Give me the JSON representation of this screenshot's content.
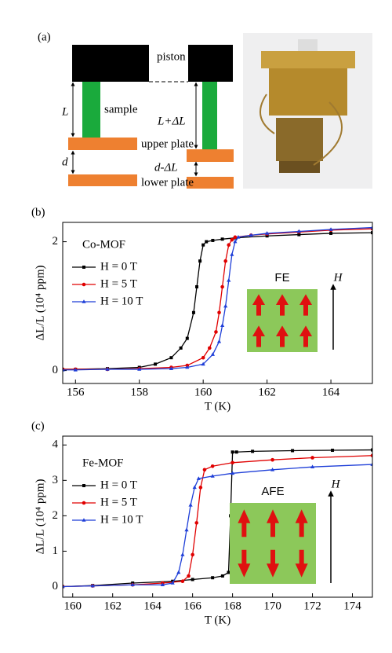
{
  "diagram": {
    "label": "(a)",
    "piston": "piston",
    "sample": "sample",
    "L": "L",
    "L_plus": "L+ΔL",
    "upper_plate": "upper plate",
    "d": "d",
    "d_minus": "d-ΔL",
    "lower_plate": "lower plate"
  },
  "chart_data": [
    {
      "type": "line",
      "panel": "(b)",
      "x_label": "T (K)",
      "y_label": "ΔL/L (10⁴ ppm)",
      "legend_title": "Co-MOF",
      "inset_label": "FE",
      "field_label": "H",
      "xlim": [
        155.6,
        165.3
      ],
      "xticks": [
        156,
        158,
        160,
        162,
        164
      ],
      "ylim": [
        -0.2,
        2.3
      ],
      "yticks": [
        0,
        2
      ],
      "series": [
        {
          "name": "H = 0 T",
          "color": "#000000",
          "marker": "square",
          "x": [
            155.6,
            156,
            157,
            158,
            158.5,
            159,
            159.3,
            159.5,
            159.7,
            159.8,
            159.9,
            160,
            160.1,
            160.3,
            160.6,
            161,
            162,
            163,
            164,
            165.3
          ],
          "values": [
            0.02,
            0.02,
            0.03,
            0.05,
            0.1,
            0.2,
            0.35,
            0.5,
            0.9,
            1.3,
            1.7,
            1.95,
            2.0,
            2.02,
            2.04,
            2.06,
            2.09,
            2.11,
            2.13,
            2.14
          ]
        },
        {
          "name": "H = 5 T",
          "color": "#e00000",
          "marker": "circle",
          "x": [
            155.6,
            156,
            157,
            158,
            159,
            159.5,
            160,
            160.2,
            160.4,
            160.5,
            160.6,
            160.7,
            160.8,
            160.9,
            161,
            161.5,
            162,
            163,
            164,
            165.3
          ],
          "values": [
            0.02,
            0.02,
            0.02,
            0.03,
            0.05,
            0.08,
            0.2,
            0.35,
            0.6,
            0.9,
            1.3,
            1.7,
            1.95,
            2.03,
            2.07,
            2.1,
            2.12,
            2.15,
            2.18,
            2.2
          ]
        },
        {
          "name": "H = 10 T",
          "color": "#1f3fd8",
          "marker": "triangle",
          "x": [
            155.6,
            156,
            157,
            158,
            159,
            159.5,
            160,
            160.3,
            160.5,
            160.6,
            160.7,
            160.8,
            160.9,
            161,
            161.1,
            161.5,
            162,
            163,
            164,
            165.3
          ],
          "values": [
            0.01,
            0.01,
            0.02,
            0.02,
            0.03,
            0.05,
            0.1,
            0.25,
            0.45,
            0.7,
            1.0,
            1.4,
            1.8,
            2.0,
            2.07,
            2.1,
            2.13,
            2.16,
            2.19,
            2.22
          ]
        }
      ]
    },
    {
      "type": "line",
      "panel": "(c)",
      "x_label": "T (K)",
      "y_label": "ΔL/L (10⁴ ppm)",
      "legend_title": "Fe-MOF",
      "inset_label": "AFE",
      "field_label": "H",
      "xlim": [
        159.5,
        175.0
      ],
      "xticks": [
        160,
        162,
        164,
        166,
        168,
        170,
        172,
        174
      ],
      "ylim": [
        -0.3,
        4.25
      ],
      "yticks": [
        0,
        1,
        2,
        3,
        4
      ],
      "series": [
        {
          "name": "H = 0 T",
          "color": "#000000",
          "marker": "square",
          "x": [
            159.5,
            161,
            163,
            165,
            166,
            167,
            167.5,
            167.8,
            167.9,
            168,
            168.2,
            169,
            171,
            173,
            175
          ],
          "values": [
            0,
            0.03,
            0.1,
            0.15,
            0.2,
            0.25,
            0.3,
            0.4,
            2.0,
            3.8,
            3.8,
            3.82,
            3.84,
            3.85,
            3.86
          ]
        },
        {
          "name": "H = 5 T",
          "color": "#e00000",
          "marker": "circle",
          "x": [
            159.5,
            161,
            163,
            164.5,
            165.5,
            165.8,
            166,
            166.2,
            166.4,
            166.6,
            167,
            168,
            170,
            172,
            175
          ],
          "values": [
            0,
            0.02,
            0.05,
            0.1,
            0.15,
            0.3,
            0.9,
            1.8,
            2.8,
            3.3,
            3.4,
            3.5,
            3.58,
            3.64,
            3.7
          ]
        },
        {
          "name": "H = 10 T",
          "color": "#1f3fd8",
          "marker": "triangle",
          "x": [
            159.5,
            161,
            163,
            164.5,
            165,
            165.3,
            165.5,
            165.7,
            165.9,
            166.1,
            166.3,
            167,
            168,
            170,
            172,
            175
          ],
          "values": [
            0,
            0.02,
            0.05,
            0.05,
            0.1,
            0.4,
            0.9,
            1.6,
            2.3,
            2.8,
            3.05,
            3.12,
            3.2,
            3.3,
            3.38,
            3.45
          ]
        }
      ]
    }
  ]
}
